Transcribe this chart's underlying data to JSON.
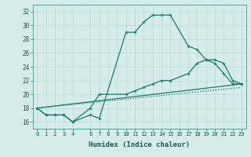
{
  "xlabel": "Humidex (Indice chaleur)",
  "background_color": "#d5ecea",
  "grid_color": "#b8d8d5",
  "line_color": "#1a7a6e",
  "xlim": [
    -0.5,
    23.5
  ],
  "ylim": [
    15,
    33
  ],
  "xticks": [
    0,
    1,
    2,
    3,
    4,
    6,
    7,
    8,
    9,
    10,
    11,
    12,
    13,
    14,
    15,
    16,
    17,
    18,
    19,
    20,
    21,
    22,
    23
  ],
  "yticks": [
    16,
    18,
    20,
    22,
    24,
    26,
    28,
    30,
    32
  ],
  "line1_x": [
    0,
    1,
    2,
    3,
    4,
    6,
    7,
    10,
    11,
    12,
    13,
    14,
    15,
    17,
    18,
    19,
    20,
    21,
    22,
    23
  ],
  "line1_y": [
    18,
    17,
    17,
    17,
    16,
    17,
    16.5,
    29,
    29,
    30.5,
    31.5,
    31.5,
    31.5,
    27,
    26.5,
    25,
    24.5,
    23,
    21.5,
    21.5
  ],
  "line2_x": [
    0,
    1,
    2,
    3,
    4,
    6,
    7,
    10,
    11,
    12,
    13,
    14,
    15,
    17,
    18,
    19,
    20,
    21,
    22,
    23
  ],
  "line2_y": [
    18,
    17,
    17,
    17,
    16,
    18,
    20,
    20,
    20.5,
    21,
    21.5,
    22,
    22,
    23,
    24.5,
    25,
    25,
    24.5,
    22,
    21.5
  ],
  "line3_x": [
    0,
    23
  ],
  "line3_y": [
    18,
    21.5
  ],
  "line4_x": [
    0,
    23
  ],
  "line4_y": [
    18,
    21.0
  ]
}
